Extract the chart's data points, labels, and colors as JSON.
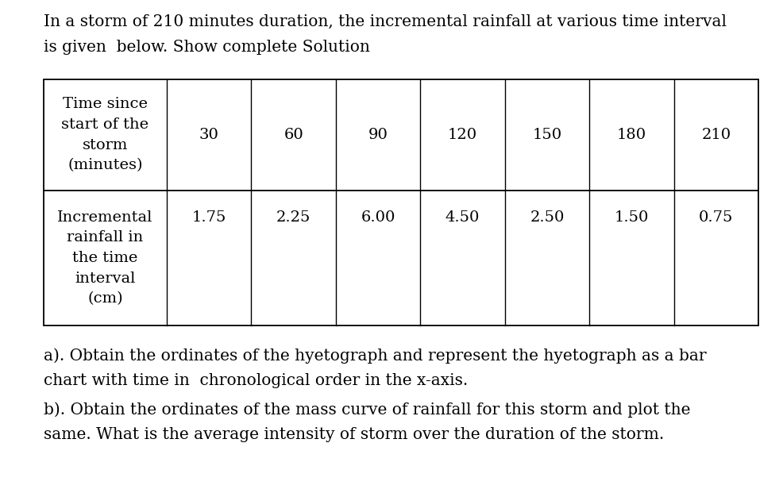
{
  "intro_text_line1": "In a storm of 210 minutes duration, the incremental rainfall at various time interval",
  "intro_text_line2": "is given  below. Show complete Solution",
  "time_values": [
    "30",
    "60",
    "90",
    "120",
    "150",
    "180",
    "210"
  ],
  "row1_label_lines": [
    "Time since",
    "start of the",
    "storm",
    "(minutes)"
  ],
  "row2_label_lines": [
    "Incremental",
    "rainfall in",
    "the time",
    "interval",
    "(cm)"
  ],
  "table_row2_values": [
    "1.75",
    "2.25",
    "6.00",
    "4.50",
    "2.50",
    "1.50",
    "0.75"
  ],
  "question_a_line1": "a). Obtain the ordinates of the hyetograph and represent the hyetograph as a bar",
  "question_a_line2": "chart with time in  chronological order in the x-axis.",
  "question_b_line1": "b). Obtain the ordinates of the mass curve of rainfall for this storm and plot the",
  "question_b_line2": "same. What is the average intensity of storm over the duration of the storm.",
  "bg_color": "#ffffff",
  "text_color": "#000000",
  "font_size_body": 14.5,
  "font_size_table": 14.0
}
